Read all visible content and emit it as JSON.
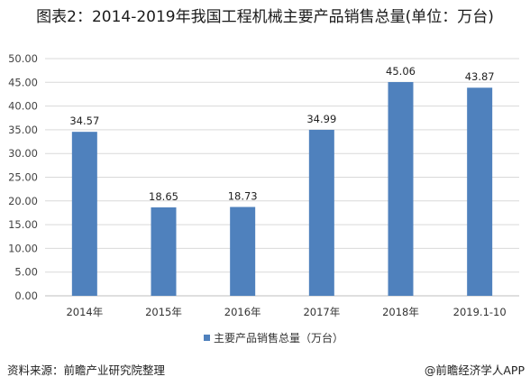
{
  "title": "图表2：2014-2019年我国工程机械主要产品销售总量(单位：万台)",
  "source_text": "资料来源：前瞻产业研究院整理",
  "brand_text": "@前瞻经济学人APP",
  "colors": {
    "bar": "#4f81bd",
    "grid": "#d9d9d9",
    "axis": "#bfbfbf"
  },
  "chart_data": {
    "type": "bar",
    "categories": [
      "2014年",
      "2015年",
      "2016年",
      "2017年",
      "2018年",
      "2019.1-10"
    ],
    "series": [
      {
        "name": "主要产品销售总量（万台）",
        "values": [
          34.57,
          18.65,
          18.73,
          34.99,
          45.06,
          43.87
        ]
      }
    ],
    "data_labels": [
      "34.57",
      "18.65",
      "18.73",
      "34.99",
      "45.06",
      "43.87"
    ],
    "y_ticks": [
      "0.00",
      "5.00",
      "10.00",
      "15.00",
      "20.00",
      "25.00",
      "30.00",
      "35.00",
      "40.00",
      "45.00",
      "50.00"
    ],
    "ylim": [
      0,
      50
    ],
    "grid": true,
    "legend_position": "bottom"
  }
}
